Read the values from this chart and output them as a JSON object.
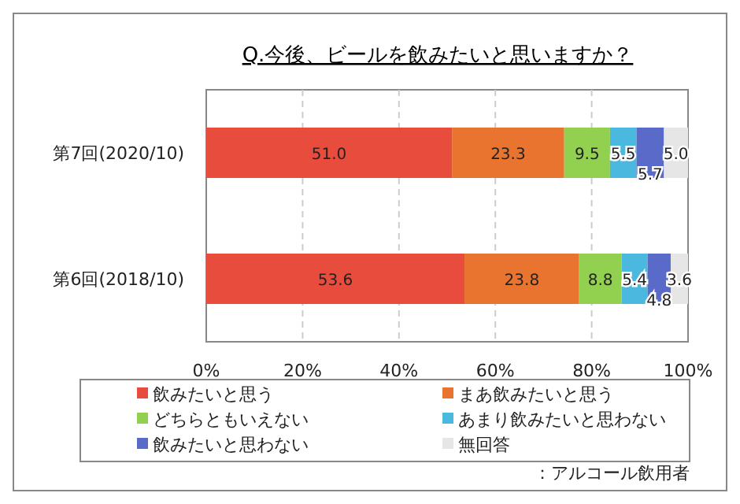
{
  "chart_data": {
    "type": "bar",
    "orientation": "horizontal",
    "stacked": true,
    "title": "Q.今後、ビールを飲みたいと思いますか？",
    "categories": [
      "第7回(2020/10)",
      "第6回(2018/10)"
    ],
    "series": [
      {
        "name": "飲みたいと思う",
        "color": "#e84c3d",
        "values": [
          51.0,
          53.6
        ],
        "value_labels": [
          "51.0",
          "53.6"
        ]
      },
      {
        "name": "まあ飲みたいと思う",
        "color": "#e8742f",
        "values": [
          23.3,
          23.8
        ],
        "value_labels": [
          "23.3",
          "23.8"
        ]
      },
      {
        "name": "どちらともいえない",
        "color": "#92d050",
        "values": [
          9.5,
          8.8
        ],
        "value_labels": [
          "9.5",
          "8.8"
        ]
      },
      {
        "name": "あまり飲みたいと思わない",
        "color": "#4bb8e0",
        "values": [
          5.5,
          5.4
        ],
        "value_labels": [
          "5.5",
          "5.4"
        ]
      },
      {
        "name": "飲みたいと思わない",
        "color": "#5a6ac8",
        "values": [
          5.7,
          4.8
        ],
        "value_labels": [
          "5.7",
          "4.8"
        ]
      },
      {
        "name": "無回答",
        "color": "#e6e6e6",
        "values": [
          5.0,
          3.6
        ],
        "value_labels": [
          "5.0",
          "3.6"
        ]
      }
    ],
    "xlim": [
      0,
      100
    ],
    "xticks": [
      {
        "value": 0,
        "label": "0%"
      },
      {
        "value": 20,
        "label": "20%"
      },
      {
        "value": 40,
        "label": "40%"
      },
      {
        "value": 60,
        "label": "60%"
      },
      {
        "value": 80,
        "label": "80%"
      },
      {
        "value": 100,
        "label": "100%"
      }
    ],
    "grid": "x",
    "legend": "bottom",
    "annotations": [
      "：アルコール飲用者"
    ]
  }
}
